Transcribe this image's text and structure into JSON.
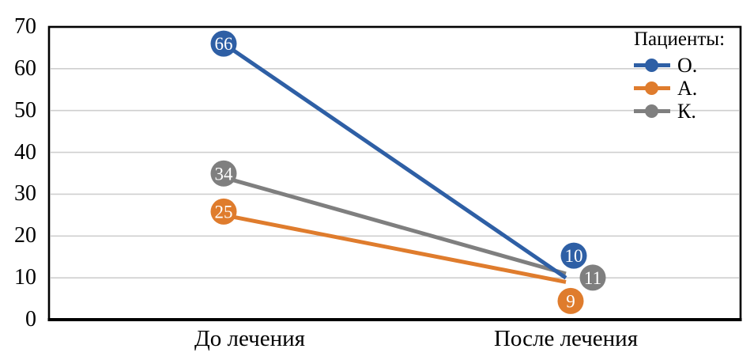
{
  "chart_data": {
    "type": "line",
    "title": "",
    "legend_title": "Пациенты:",
    "legend_position": "top-right-inside",
    "categories": [
      "До лечения",
      "После лечения"
    ],
    "series": [
      {
        "name": "О.",
        "color": "#2E5FA5",
        "values": [
          66,
          10
        ]
      },
      {
        "name": "А.",
        "color": "#DF7C2D",
        "values": [
          25,
          9
        ]
      },
      {
        "name": "К.",
        "color": "#7F7F7F",
        "values": [
          34,
          11
        ]
      }
    ],
    "ylim": [
      0,
      70
    ],
    "ytick_step": 10,
    "yticks": [
      "70",
      "60",
      "50",
      "40",
      "30",
      "20",
      "10",
      "0"
    ],
    "grid": true,
    "grid_color": "#CFCFCF",
    "axis_color": "#000000",
    "value_label_text_color": "#FFFFFF",
    "background": "#FFFFFF"
  }
}
